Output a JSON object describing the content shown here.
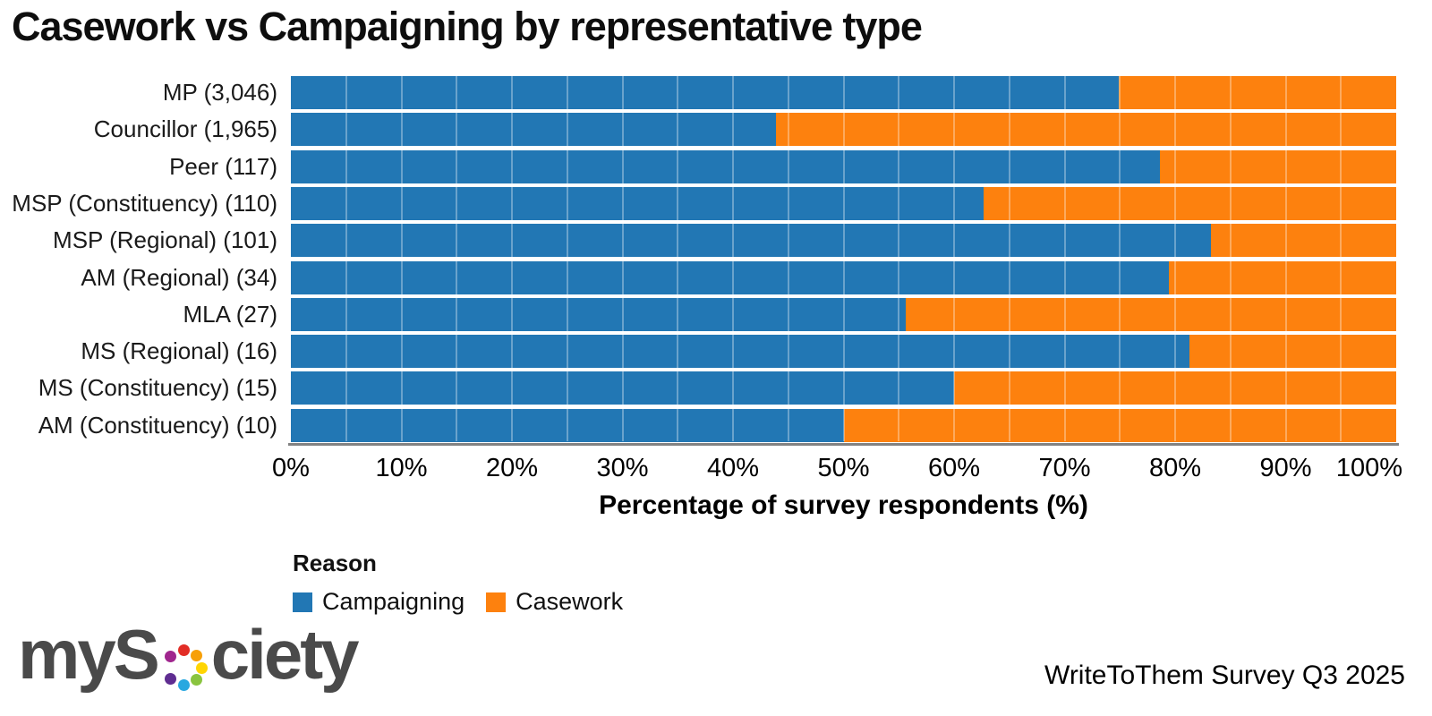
{
  "title": "Casework vs Campaigning by representative type",
  "chart_data": {
    "type": "bar",
    "orientation": "horizontal",
    "stacked": true,
    "title": "Casework vs Campaigning by representative type",
    "categories": [
      "MP (3,046)",
      "Councillor (1,965)",
      "Peer (117)",
      "MSP (Constituency) (110)",
      "MSP (Regional) (101)",
      "AM (Regional) (34)",
      "MLA (27)",
      "MS (Regional) (16)",
      "MS (Constituency) (15)",
      "AM (Constituency) (10)"
    ],
    "series": [
      {
        "name": "Campaigning",
        "color": "#2277b4",
        "values": [
          74.9,
          43.9,
          78.6,
          62.7,
          83.2,
          79.4,
          55.6,
          81.3,
          60.0,
          50.0
        ]
      },
      {
        "name": "Casework",
        "color": "#fd810e",
        "values": [
          25.1,
          56.1,
          21.4,
          37.3,
          16.8,
          20.6,
          44.4,
          18.7,
          40.0,
          50.0
        ]
      }
    ],
    "xlabel": "Percentage of survey respondents (%)",
    "xlim": [
      0,
      100
    ],
    "x_ticks": [
      "0%",
      "10%",
      "20%",
      "30%",
      "40%",
      "50%",
      "60%",
      "70%",
      "80%",
      "90%",
      "100%"
    ],
    "grid": "minor vertical gridlines every 5%, drawn faintly over bars",
    "legend_position": "bottom-left",
    "legend_title": "Reason"
  },
  "legend": {
    "title": "Reason",
    "items": [
      {
        "label": "Campaigning",
        "color": "#2277b4"
      },
      {
        "label": "Casework",
        "color": "#fd810e"
      }
    ]
  },
  "footer": {
    "logo_text_left": "myS",
    "logo_text_right": "ciety",
    "logo_dot_colors": [
      "#e22d26",
      "#f7a008",
      "#ffd502",
      "#8ac43f",
      "#28a8e0",
      "#5f2d91",
      "#a0268e"
    ],
    "caption": "WriteToThem Survey Q3 2025"
  },
  "colors": {
    "campaigning_blue": "#2277b4",
    "casework_orange": "#fd810e",
    "axis_gray": "#828282",
    "logo_gray": "#4a4a4a"
  }
}
